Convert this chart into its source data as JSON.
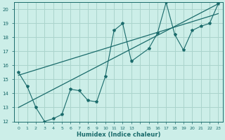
{
  "xlabel": "Humidex (Indice chaleur)",
  "bg_color": "#cceee8",
  "grid_color": "#aad4cc",
  "line_color": "#1a6b6b",
  "xlim": [
    -0.5,
    23.5
  ],
  "ylim": [
    12,
    20.5
  ],
  "xtick_vals": [
    0,
    1,
    2,
    3,
    4,
    5,
    6,
    7,
    8,
    9,
    10,
    11,
    12,
    13,
    15,
    16,
    17,
    18,
    19,
    20,
    21,
    22,
    23
  ],
  "xtick_labels": [
    "0",
    "1",
    "2",
    "3",
    "4",
    "5",
    "6",
    "7",
    "8",
    "9",
    "10",
    "11",
    "12",
    "13",
    "15",
    "16",
    "17",
    "18",
    "19",
    "20",
    "21",
    "22",
    "23"
  ],
  "ytick_vals": [
    12,
    13,
    14,
    15,
    16,
    17,
    18,
    19,
    20
  ],
  "ytick_labels": [
    "12",
    "13",
    "14",
    "15",
    "16",
    "17",
    "18",
    "19",
    "20"
  ],
  "series_x": [
    0,
    1,
    2,
    3,
    4,
    5,
    6,
    7,
    8,
    9,
    10,
    11,
    12,
    13,
    15,
    16,
    17,
    18,
    19,
    20,
    21,
    22,
    23
  ],
  "series_y": [
    15.5,
    14.5,
    13.0,
    12.0,
    12.2,
    12.5,
    14.3,
    14.2,
    13.5,
    13.4,
    15.2,
    18.5,
    19.0,
    16.3,
    17.2,
    18.3,
    20.5,
    18.2,
    17.1,
    18.5,
    18.8,
    19.0,
    20.4
  ],
  "trend1_x": [
    0,
    23
  ],
  "trend1_y": [
    15.3,
    19.7
  ],
  "trend2_x": [
    0,
    23
  ],
  "trend2_y": [
    13.0,
    20.4
  ]
}
